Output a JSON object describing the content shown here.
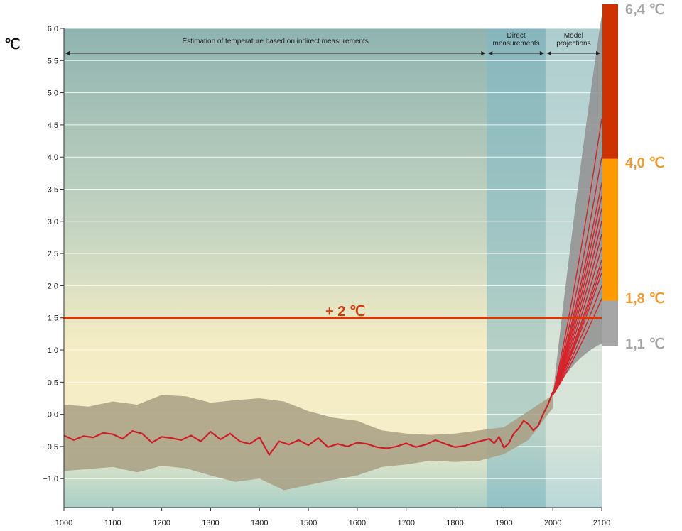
{
  "chart_data": {
    "type": "line",
    "ylabel": "℃",
    "xlim": [
      1000,
      2100
    ],
    "ylim": [
      -1.45,
      6.0
    ],
    "x_ticks": [
      1000,
      1100,
      1200,
      1300,
      1400,
      1500,
      1600,
      1700,
      1800,
      1900,
      2000,
      2100
    ],
    "y_ticks": [
      {
        "value": 6.0,
        "label": "6.0"
      },
      {
        "value": 5.5,
        "label": "5.5"
      },
      {
        "value": 5.0,
        "label": "5.0"
      },
      {
        "value": 4.5,
        "label": "4.5"
      },
      {
        "value": 4.0,
        "label": "4.0"
      },
      {
        "value": 3.5,
        "label": "3.5"
      },
      {
        "value": 3.0,
        "label": "3.0"
      },
      {
        "value": 2.5,
        "label": "2.5"
      },
      {
        "value": 2.0,
        "label": "2.0"
      },
      {
        "value": 1.5,
        "label": "1.5"
      },
      {
        "value": 1.0,
        "label": "1.0"
      },
      {
        "value": 0.5,
        "label": "0.5"
      },
      {
        "value": 0.0,
        "label": "0.0"
      },
      {
        "value": -0.5,
        "label": "−0.5"
      },
      {
        "value": -1.0,
        "label": "−1.0"
      }
    ],
    "grid": true,
    "regions": [
      {
        "label": "Estimation of temperature based on indirect measurements",
        "from": 1000,
        "to": 1865,
        "color": "#8fb4b0"
      },
      {
        "label_lines": [
          "Direct",
          "measurements"
        ],
        "from": 1865,
        "to": 1985,
        "color": "#7fb8c6"
      },
      {
        "label_lines": [
          "Model",
          "projections"
        ],
        "from": 1985,
        "to": 2100,
        "color": "#c3dde4"
      }
    ],
    "threshold": {
      "value": 1.5,
      "label": "+ 2 ℃",
      "color": "#d4380d"
    },
    "reconstruction_mean": {
      "color": "#cc2029",
      "x": [
        1000,
        1020,
        1040,
        1060,
        1080,
        1100,
        1120,
        1140,
        1160,
        1180,
        1200,
        1220,
        1240,
        1260,
        1280,
        1300,
        1320,
        1340,
        1360,
        1380,
        1400,
        1420,
        1440,
        1460,
        1480,
        1500,
        1520,
        1540,
        1560,
        1580,
        1600,
        1620,
        1640,
        1660,
        1680,
        1700,
        1720,
        1740,
        1760,
        1780,
        1800,
        1820,
        1840,
        1860,
        1870,
        1880,
        1890,
        1900,
        1910,
        1920,
        1930,
        1940,
        1950,
        1960,
        1970,
        1980,
        1990,
        2000
      ],
      "y": [
        -0.33,
        -0.4,
        -0.34,
        -0.36,
        -0.29,
        -0.31,
        -0.38,
        -0.26,
        -0.3,
        -0.44,
        -0.35,
        -0.37,
        -0.4,
        -0.33,
        -0.42,
        -0.27,
        -0.39,
        -0.3,
        -0.42,
        -0.46,
        -0.36,
        -0.63,
        -0.42,
        -0.47,
        -0.4,
        -0.48,
        -0.37,
        -0.51,
        -0.46,
        -0.5,
        -0.44,
        -0.46,
        -0.51,
        -0.53,
        -0.5,
        -0.45,
        -0.51,
        -0.47,
        -0.4,
        -0.46,
        -0.51,
        -0.49,
        -0.44,
        -0.4,
        -0.38,
        -0.45,
        -0.35,
        -0.52,
        -0.45,
        -0.3,
        -0.22,
        -0.1,
        -0.15,
        -0.25,
        -0.18,
        0.0,
        0.15,
        0.35
      ]
    },
    "uncertainty_band": {
      "color": "#a89f84",
      "x": [
        1000,
        1050,
        1100,
        1150,
        1200,
        1250,
        1300,
        1350,
        1400,
        1450,
        1500,
        1550,
        1600,
        1650,
        1700,
        1750,
        1800,
        1850,
        1900,
        1950,
        2000
      ],
      "upper": [
        0.15,
        0.12,
        0.2,
        0.15,
        0.3,
        0.28,
        0.18,
        0.22,
        0.25,
        0.2,
        0.05,
        -0.05,
        -0.1,
        -0.25,
        -0.3,
        -0.32,
        -0.3,
        -0.25,
        -0.2,
        0.05,
        0.3
      ],
      "lower": [
        -0.88,
        -0.85,
        -0.82,
        -0.9,
        -0.8,
        -0.84,
        -0.95,
        -1.05,
        -1.0,
        -1.18,
        -1.1,
        -1.02,
        -0.95,
        -0.82,
        -0.78,
        -0.72,
        -0.74,
        -0.72,
        -0.62,
        -0.4,
        0.1
      ]
    },
    "projections": {
      "color": "#d8222a",
      "band_color": "#909090",
      "x_start": 2000,
      "y_start": 0.3,
      "end_values": [
        4.6,
        4.0,
        3.6,
        3.4,
        3.2,
        3.0,
        2.8,
        2.6,
        2.4,
        2.3,
        2.2,
        2.0,
        1.8
      ],
      "band_end_range": [
        1.1,
        6.2
      ]
    },
    "scenario_ranges": [
      {
        "from": 4.0,
        "to": 6.4,
        "color": "#cc3300",
        "label": "6,4 ℃",
        "label_color": "#a6a6a6"
      },
      {
        "from": 1.8,
        "to": 4.0,
        "color": "#ff9900",
        "label": "4,0 ℃",
        "label_color": "#f29a2e"
      },
      {
        "from": 1.1,
        "to": 1.8,
        "color": "#a6a6a6",
        "label": "1,8 ℃",
        "label_color": "#f29a2e"
      },
      {
        "label": "1,1 ℃",
        "value": 1.1,
        "label_color": "#a6a6a6"
      }
    ]
  }
}
